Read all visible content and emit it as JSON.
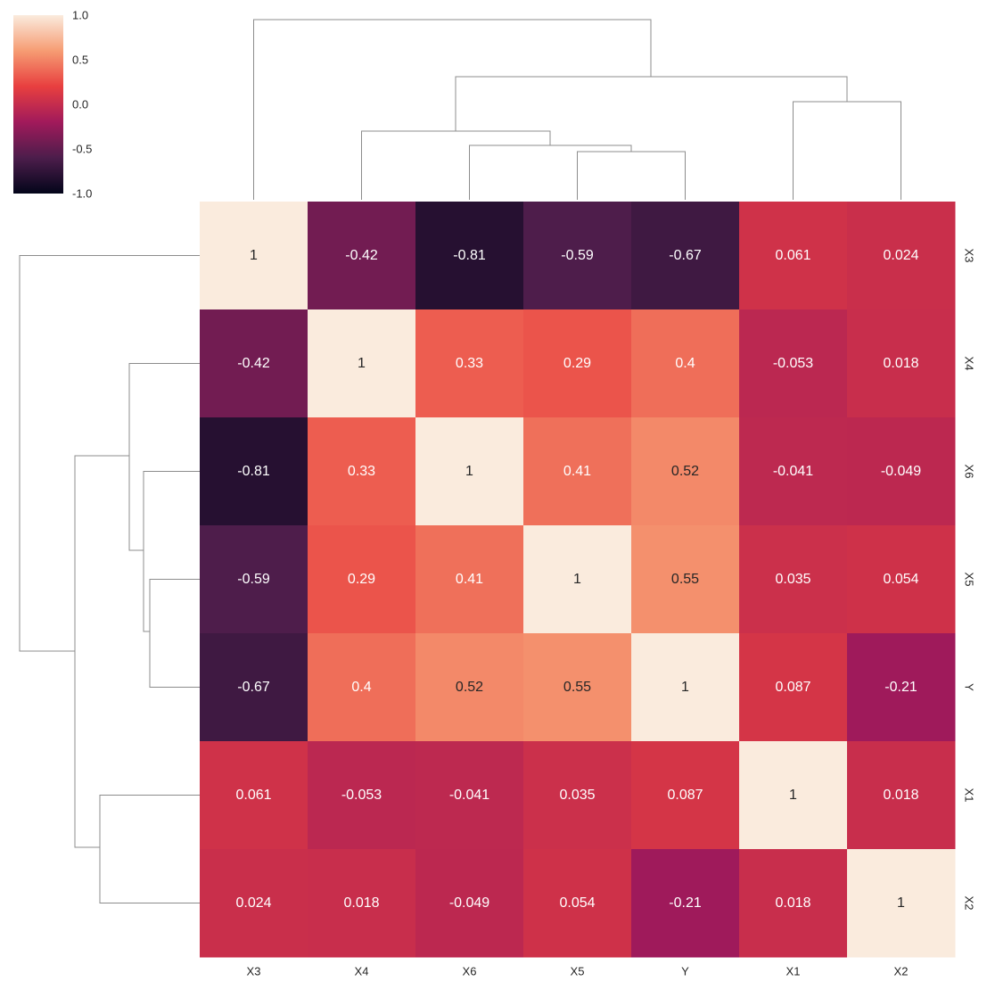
{
  "chart_data": {
    "type": "heatmap",
    "title": "",
    "xlabel": "",
    "ylabel": "",
    "x_categories": [
      "X3",
      "X4",
      "X6",
      "X5",
      "Y",
      "X1",
      "X2"
    ],
    "y_categories": [
      "X3",
      "X4",
      "X6",
      "X5",
      "Y",
      "X1",
      "X2"
    ],
    "values": [
      [
        1,
        -0.42,
        -0.81,
        -0.59,
        -0.67,
        0.061,
        0.024
      ],
      [
        -0.42,
        1,
        0.33,
        0.29,
        0.4,
        -0.053,
        0.018
      ],
      [
        -0.81,
        0.33,
        1,
        0.41,
        0.52,
        -0.041,
        -0.049
      ],
      [
        -0.59,
        0.29,
        0.41,
        1,
        0.55,
        0.035,
        0.054
      ],
      [
        -0.67,
        0.4,
        0.52,
        0.55,
        1,
        0.087,
        -0.21
      ],
      [
        0.061,
        -0.053,
        -0.041,
        0.035,
        0.087,
        1,
        0.018
      ],
      [
        0.024,
        0.018,
        -0.049,
        0.054,
        -0.21,
        0.018,
        1
      ]
    ],
    "annotations": [
      [
        "1",
        "-0.42",
        "-0.81",
        "-0.59",
        "-0.67",
        "0.061",
        "0.024"
      ],
      [
        "-0.42",
        "1",
        "0.33",
        "0.29",
        "0.4",
        "-0.053",
        "0.018"
      ],
      [
        "-0.81",
        "0.33",
        "1",
        "0.41",
        "0.52",
        "-0.041",
        "-0.049"
      ],
      [
        "-0.59",
        "0.29",
        "0.41",
        "1",
        "0.55",
        "0.035",
        "0.054"
      ],
      [
        "-0.67",
        "0.4",
        "0.52",
        "0.55",
        "1",
        "0.087",
        "-0.21"
      ],
      [
        "0.061",
        "-0.053",
        "-0.041",
        "0.035",
        "0.087",
        "1",
        "0.018"
      ],
      [
        "0.024",
        "0.018",
        "-0.049",
        "0.054",
        "-0.21",
        "0.018",
        "1"
      ]
    ],
    "colorbar": {
      "range": [
        -1.0,
        1.0
      ],
      "ticks": [
        "1.0",
        "0.5",
        "0.0",
        "-0.5",
        "-1.0"
      ],
      "placement": "top-left"
    },
    "colormap": "rocket",
    "colormap_stops": [
      "#03051a",
      "#4c1d4b",
      "#a11a5b",
      "#e83f3f",
      "#f69c73",
      "#faebdd"
    ],
    "dendrogram_color": "#8c8c8c",
    "dendrogram_placement": [
      "top",
      "left"
    ]
  }
}
